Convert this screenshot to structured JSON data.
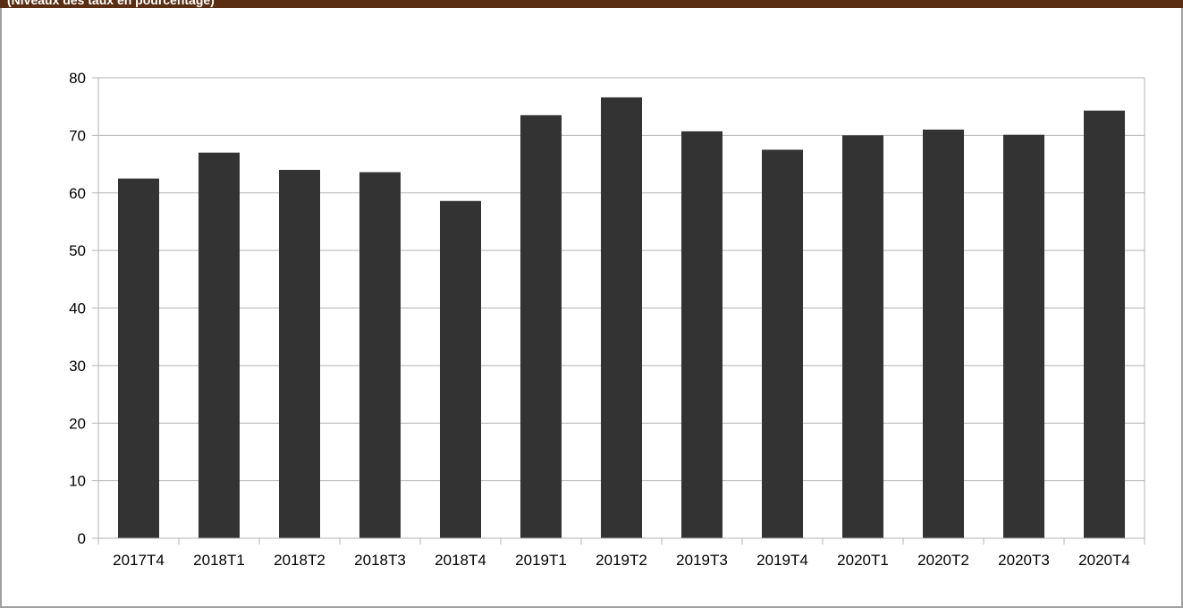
{
  "header": {
    "text": "(Niveaux des taux en pourcentage)"
  },
  "colors": {
    "bar": "#333333",
    "grid": "#b3b3b3",
    "header_bg": "#5a2e12"
  },
  "chart_data": {
    "type": "bar",
    "categories": [
      "2017T4",
      "2018T1",
      "2018T2",
      "2018T3",
      "2018T4",
      "2019T1",
      "2019T2",
      "2019T3",
      "2019T4",
      "2020T1",
      "2020T2",
      "2020T3",
      "2020T4"
    ],
    "values": [
      62.5,
      67.0,
      64.0,
      63.6,
      58.6,
      73.5,
      76.6,
      70.7,
      67.5,
      70.0,
      71.0,
      70.1,
      74.3
    ],
    "ylim": [
      0,
      80
    ],
    "yticks": [
      0,
      10,
      20,
      30,
      40,
      50,
      60,
      70,
      80
    ],
    "grid": true,
    "legend": "none"
  }
}
